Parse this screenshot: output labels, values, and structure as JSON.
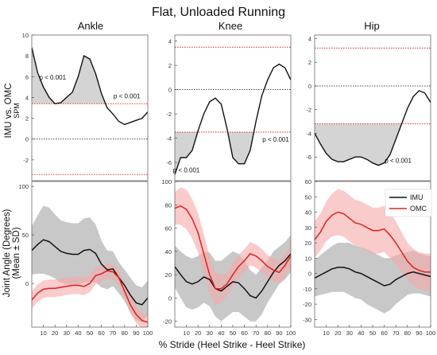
{
  "figure": {
    "title": "Flat, Unloaded Running",
    "xlabel": "% Stride (Heel Strike - Heel Strike)",
    "row1_ylabel": "IMU vs. OMC",
    "row1_ylabel_sub": "SPM",
    "row2_ylabel": "Joint Angle (Degrees)",
    "row2_ylabel_sub": "(Mean ± SD)",
    "legend": [
      "IMU",
      "OMC"
    ],
    "colors": {
      "imu": "#111111",
      "omc": "#e02020",
      "imu_band": "#9a9a9a",
      "omc_band": "#f7a8a8",
      "threshold": "#e02020",
      "spm_fill": "#d4d4d4"
    }
  },
  "chart_data": [
    {
      "id": "spm_ankle",
      "type": "line",
      "title": "Ankle",
      "xlim": [
        0,
        100
      ],
      "ylim": [
        -4,
        10
      ],
      "yticks": [
        10,
        8,
        6,
        4,
        2,
        0,
        -2
      ],
      "threshold": 3.4,
      "x": [
        0,
        5,
        10,
        15,
        20,
        25,
        30,
        35,
        40,
        45,
        50,
        55,
        60,
        65,
        70,
        75,
        80,
        85,
        90,
        95,
        100
      ],
      "y": [
        8.8,
        6.4,
        5.0,
        4.0,
        3.4,
        3.5,
        4.0,
        4.5,
        6.0,
        8.0,
        7.7,
        6.3,
        4.4,
        3.0,
        2.4,
        1.7,
        1.4,
        1.6,
        1.8,
        2.0,
        2.6
      ],
      "annotations": [
        {
          "text": "p < 0.001",
          "x": 18,
          "y": 5.7
        },
        {
          "text": "p < 0.001",
          "x": 82,
          "y": 3.9
        }
      ]
    },
    {
      "id": "spm_knee",
      "type": "line",
      "title": "Knee",
      "xlim": [
        0,
        100
      ],
      "ylim": [
        -7.5,
        4.5
      ],
      "yticks": [
        4,
        2,
        0,
        -2,
        -4,
        -6
      ],
      "threshold": 3.5,
      "x": [
        0,
        5,
        10,
        15,
        20,
        25,
        30,
        35,
        40,
        45,
        50,
        55,
        60,
        65,
        70,
        75,
        80,
        85,
        90,
        95,
        100
      ],
      "y": [
        -7.0,
        -5.6,
        -5.6,
        -5.0,
        -3.4,
        -2.0,
        -1.0,
        -0.7,
        -1.2,
        -3.2,
        -5.6,
        -6.1,
        -6.1,
        -5.0,
        -2.6,
        -0.5,
        0.8,
        1.8,
        2.1,
        1.8,
        0.8
      ],
      "annotations": [
        {
          "text": "p < 0.001",
          "x": 10,
          "y": -6.8
        },
        {
          "text": "p < 0.001",
          "x": 87,
          "y": -4.3
        }
      ]
    },
    {
      "id": "spm_hip",
      "type": "line",
      "title": "Hip",
      "xlim": [
        0,
        100
      ],
      "ylim": [
        -8,
        4.3
      ],
      "yticks": [
        4,
        2,
        0,
        -2,
        -4,
        -6
      ],
      "threshold": 3.2,
      "x": [
        0,
        5,
        10,
        15,
        20,
        25,
        30,
        35,
        40,
        45,
        50,
        55,
        60,
        65,
        70,
        75,
        80,
        85,
        90,
        95,
        100
      ],
      "y": [
        -4.0,
        -4.9,
        -5.7,
        -6.2,
        -6.4,
        -6.4,
        -6.2,
        -6.0,
        -6.0,
        -6.2,
        -6.5,
        -6.7,
        -6.5,
        -5.8,
        -4.5,
        -3.2,
        -1.9,
        -0.9,
        -0.4,
        -0.6,
        -1.4
      ],
      "annotations": [
        {
          "text": "p < 0.001",
          "x": 72,
          "y": -6.5
        }
      ]
    },
    {
      "id": "angle_ankle",
      "type": "line",
      "xlim": [
        0,
        100
      ],
      "ylim": [
        -45,
        105
      ],
      "yticks": [
        100,
        50,
        0
      ],
      "xticks": [
        10,
        20,
        30,
        40,
        50,
        60,
        70,
        80,
        90,
        100
      ],
      "x": [
        0,
        5,
        10,
        15,
        20,
        25,
        30,
        35,
        40,
        45,
        50,
        55,
        60,
        65,
        70,
        75,
        80,
        85,
        90,
        95,
        100
      ],
      "series": [
        {
          "name": "IMU",
          "mean": [
            34,
            40,
            45,
            43,
            38,
            33,
            31,
            30,
            30,
            34,
            35,
            31,
            20,
            14,
            15,
            6,
            -2,
            -12,
            -20,
            -22,
            -15
          ],
          "sd": [
            25,
            30,
            35,
            35,
            33,
            32,
            32,
            32,
            32,
            33,
            33,
            30,
            24,
            20,
            18,
            16,
            16,
            18,
            18,
            18,
            18
          ]
        },
        {
          "name": "OMC",
          "mean": [
            -17,
            -10,
            -6,
            -5,
            -5,
            -4,
            -3,
            -2,
            -2,
            -3,
            0,
            8,
            10,
            13,
            12,
            6,
            -8,
            -22,
            -32,
            -38,
            -40
          ],
          "sd": [
            9,
            9,
            9,
            9,
            9,
            9,
            9,
            9,
            9,
            9,
            9,
            9,
            8,
            8,
            8,
            8,
            8,
            9,
            9,
            8,
            8
          ]
        }
      ]
    },
    {
      "id": "angle_knee",
      "type": "line",
      "xlim": [
        0,
        100
      ],
      "ylim": [
        -25,
        100
      ],
      "yticks": [
        100,
        80,
        60,
        40,
        20,
        0,
        -20
      ],
      "xticks": [
        10,
        20,
        30,
        40,
        50,
        60,
        70,
        80,
        90,
        100
      ],
      "x": [
        0,
        5,
        10,
        15,
        20,
        25,
        30,
        35,
        40,
        45,
        50,
        55,
        60,
        65,
        70,
        75,
        80,
        85,
        90,
        95,
        100
      ],
      "series": [
        {
          "name": "IMU",
          "mean": [
            27,
            20,
            14,
            12,
            14,
            18,
            16,
            8,
            6,
            10,
            14,
            13,
            8,
            2,
            0,
            6,
            14,
            22,
            28,
            32,
            38
          ],
          "sd": [
            18,
            20,
            22,
            22,
            22,
            22,
            23,
            24,
            26,
            26,
            26,
            25,
            24,
            22,
            20,
            20,
            18,
            18,
            16,
            16,
            16
          ]
        },
        {
          "name": "OMC",
          "mean": [
            77,
            79,
            76,
            68,
            56,
            38,
            20,
            8,
            8,
            12,
            20,
            27,
            32,
            38,
            36,
            32,
            27,
            24,
            22,
            28,
            36
          ],
          "sd": [
            14,
            16,
            17,
            17,
            17,
            17,
            16,
            14,
            12,
            10,
            10,
            10,
            10,
            10,
            10,
            10,
            10,
            10,
            10,
            10,
            10
          ]
        }
      ]
    },
    {
      "id": "angle_hip",
      "type": "line",
      "xlim": [
        0,
        100
      ],
      "ylim": [
        -35,
        60
      ],
      "yticks": [
        60,
        50,
        40,
        30,
        20,
        10,
        0,
        -10,
        -20,
        -30
      ],
      "xticks": [
        10,
        20,
        30,
        40,
        50,
        60,
        70,
        80,
        90,
        100
      ],
      "x": [
        0,
        5,
        10,
        15,
        20,
        25,
        30,
        35,
        40,
        45,
        50,
        55,
        60,
        65,
        70,
        75,
        80,
        85,
        90,
        95,
        100
      ],
      "series": [
        {
          "name": "IMU",
          "mean": [
            -3,
            -1,
            1,
            3,
            4,
            4,
            3,
            1,
            0,
            -2,
            -4,
            -6,
            -8,
            -7,
            -4,
            -2,
            0,
            1,
            0,
            -1,
            -2
          ],
          "sd": [
            12,
            13,
            14,
            15,
            16,
            16,
            17,
            17,
            17,
            18,
            18,
            18,
            18,
            17,
            16,
            15,
            14,
            14,
            13,
            13,
            13
          ]
        },
        {
          "name": "OMC",
          "mean": [
            22,
            27,
            34,
            38,
            40,
            39,
            36,
            33,
            32,
            30,
            28,
            28,
            29,
            25,
            20,
            14,
            8,
            4,
            2,
            1,
            1
          ],
          "sd": [
            12,
            12,
            13,
            14,
            15,
            15,
            15,
            15,
            15,
            15,
            15,
            15,
            15,
            15,
            14,
            13,
            12,
            12,
            12,
            12,
            12
          ]
        }
      ]
    }
  ]
}
